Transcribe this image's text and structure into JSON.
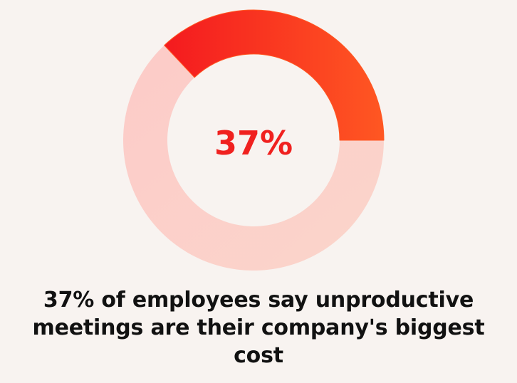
{
  "chart_data": {
    "type": "pie",
    "variant": "donut",
    "slices": [
      {
        "value": 37
      },
      {
        "value": 63
      }
    ],
    "center_label": "37%",
    "caption": "37% of employees say unproductive meetings are their company's biggest cost",
    "colors": {
      "highlight_start": "#f41a1f",
      "highlight_end": "#ff5722",
      "remainder_start": "#fccbc8",
      "remainder_end": "#fbd5cb",
      "center_text": "#f0211f",
      "caption_text": "#111111",
      "background": "#f8f3f0"
    }
  }
}
